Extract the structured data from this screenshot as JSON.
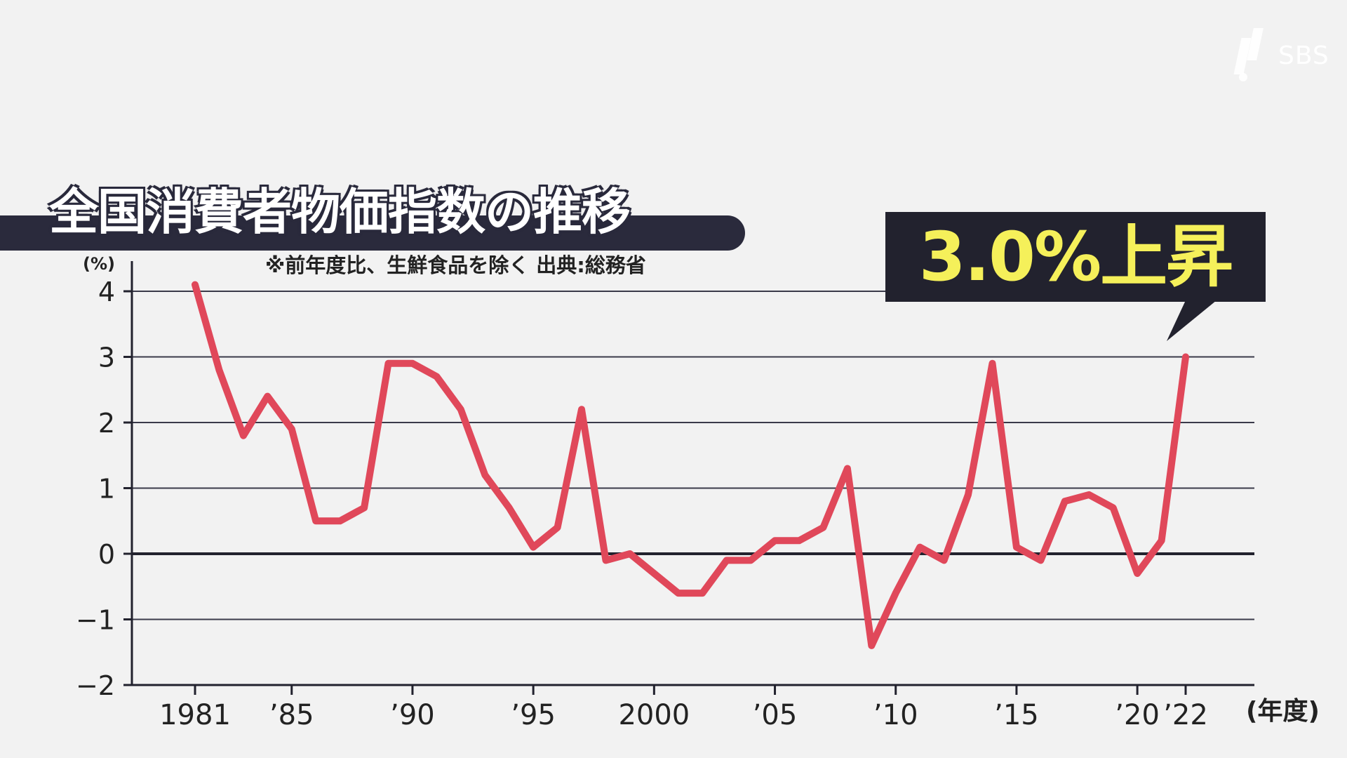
{
  "watermark": {
    "logo_text": "SBS"
  },
  "header": {
    "title": "全国消費者物価指数の推移",
    "subtitle": "※前年度比、生鮮食品を除く 出典:総務省"
  },
  "callout": {
    "text": "3.0%上昇"
  },
  "colors": {
    "line": "#e0485a",
    "title_band": "#2a2a3c",
    "callout_bg": "#22222e",
    "callout_text": "#f5f05a",
    "background": "#f2f2f2"
  },
  "chart_data": {
    "type": "line",
    "title": "全国消費者物価指数の推移",
    "subtitle": "※前年度比、生鮮食品を除く 出典:総務省",
    "xlabel": "(年度)",
    "ylabel": "(%)",
    "ylim": [
      -2,
      4
    ],
    "yticks": [
      4,
      3,
      2,
      1,
      0,
      -1,
      -2
    ],
    "ytick_labels": [
      "4",
      "3",
      "2",
      "1",
      "0",
      "−1",
      "−2"
    ],
    "xlim": [
      1981,
      2022
    ],
    "xticks": [
      1981,
      1985,
      1990,
      1995,
      2000,
      2005,
      2010,
      2015,
      2020,
      2022
    ],
    "xtick_labels": [
      "1981",
      "’85",
      "’90",
      "’95",
      "2000",
      "’05",
      "’10",
      "’15",
      "’20",
      "’22"
    ],
    "grid": true,
    "legend": "none",
    "series": [
      {
        "x": [
          1981,
          1982,
          1983,
          1984,
          1985,
          1986,
          1987,
          1988,
          1989,
          1990,
          1991,
          1992,
          1993,
          1994,
          1995,
          1996,
          1997,
          1998,
          1999,
          2000,
          2001,
          2002,
          2003,
          2004,
          2005,
          2006,
          2007,
          2008,
          2009,
          2010,
          2011,
          2012,
          2013,
          2014,
          2015,
          2016,
          2017,
          2018,
          2019,
          2020,
          2021,
          2022
        ],
        "values": [
          4.1,
          2.8,
          1.8,
          2.4,
          1.9,
          0.5,
          0.5,
          0.7,
          2.9,
          2.9,
          2.7,
          2.2,
          1.2,
          0.7,
          0.1,
          0.4,
          2.2,
          -0.1,
          0.0,
          -0.3,
          -0.6,
          -0.6,
          -0.1,
          -0.1,
          0.2,
          0.2,
          0.4,
          1.3,
          -1.4,
          -0.6,
          0.1,
          -0.1,
          0.9,
          2.9,
          0.1,
          -0.1,
          0.8,
          0.9,
          0.7,
          -0.3,
          0.2,
          3.0
        ]
      }
    ],
    "annotations": [
      {
        "x": 2022,
        "text": "3.0%上昇"
      }
    ]
  }
}
